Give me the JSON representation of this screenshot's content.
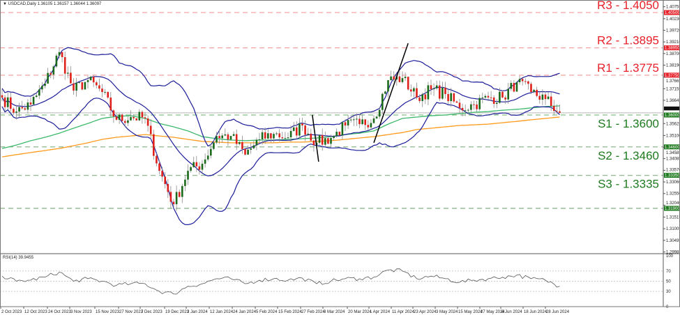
{
  "header": {
    "symbol_label": "USDCAD,Daily",
    "ohlc": "1.36105 1.36157 1.36044 1.36097"
  },
  "rsi_label": "RSI(14) 39.9455",
  "colors": {
    "resistance": "#e8202a",
    "support": "#1e7a1e",
    "bull": "#1b6a1b",
    "bear": "#e0201a",
    "bollinger": "#1c1c9a",
    "ma_green": "#3cb96b",
    "ma_orange": "#ff9a1a",
    "current_tag": "#111111"
  },
  "chart_data": {
    "type": "candlestick",
    "symbol": "USDCAD",
    "timeframe": "Daily",
    "ylim": [
      1.29985,
      1.40755
    ],
    "x_tick_labels": [
      "2 Oct 2023",
      "12 Oct 2023",
      "24 Oct 2023",
      "3 Nov 2023",
      "15 Nov 2023",
      "27 Nov 2023",
      "7 Dec 2023",
      "19 Dec 2023",
      "2 Jan 2024",
      "12 Jan 2024",
      "24 Jan 2024",
      "5 Feb 2024",
      "15 Feb 2024",
      "27 Feb 2024",
      "8 Mar 2024",
      "20 Mar 2024",
      "1 Apr 2024",
      "11 Apr 2024",
      "23 Apr 2024",
      "3 May 2024",
      "15 May 2024",
      "27 May 2024",
      "6 Jun 2024",
      "18 Jun 2024",
      "28 Jun 2024"
    ],
    "y_tick_labels": [
      "1.40755",
      "1.40230",
      "1.39720",
      "1.39210",
      "1.38700",
      "1.38190",
      "1.37665",
      "1.37155",
      "1.36645",
      "1.35625",
      "1.35100",
      "1.34585",
      "1.34085",
      "1.33570",
      "1.33060",
      "1.32550",
      "1.32040",
      "1.31515",
      "1.31005",
      "1.30495",
      "1.29985"
    ],
    "close_every_5_sessions": [
      1.3677,
      1.3615,
      1.3646,
      1.3738,
      1.3876,
      1.3707,
      1.3753,
      1.3701,
      1.3579,
      1.3591,
      1.3585,
      1.3355,
      1.3208,
      1.3355,
      1.3386,
      1.3508,
      1.3508,
      1.3426,
      1.3493,
      1.3517,
      1.3502,
      1.3554,
      1.3478,
      1.3499,
      1.3554,
      1.356,
      1.3585,
      1.3753,
      1.3762,
      1.3677,
      1.3713,
      1.3692,
      1.3631,
      1.3646,
      1.3677,
      1.3677,
      1.3744,
      1.3701,
      1.367,
      1.361
    ],
    "ma_green_every_5_sessions": [
      1.3453,
      1.3468,
      1.3487,
      1.3502,
      1.352,
      1.3542,
      1.3563,
      1.3585,
      1.3594,
      1.3597,
      1.3585,
      1.3563,
      1.3548,
      1.353,
      1.3505,
      1.3496,
      1.349,
      1.3487,
      1.349,
      1.349,
      1.3493,
      1.3496,
      1.3499,
      1.3505,
      1.3514,
      1.352,
      1.353,
      1.356,
      1.3585,
      1.3591,
      1.3597,
      1.36,
      1.3606,
      1.3612,
      1.3615,
      1.3621,
      1.3625,
      1.3631,
      1.3637,
      1.364
    ],
    "ma_orange_every_5_sessions": [
      1.3416,
      1.3426,
      1.3435,
      1.3444,
      1.3453,
      1.3465,
      1.3478,
      1.3493,
      1.3502,
      1.3508,
      1.3514,
      1.3508,
      1.3502,
      1.3493,
      1.3484,
      1.3481,
      1.3478,
      1.3478,
      1.3478,
      1.3478,
      1.3481,
      1.3481,
      1.3484,
      1.3487,
      1.3493,
      1.3499,
      1.3505,
      1.3514,
      1.3523,
      1.3536,
      1.3542,
      1.3548,
      1.3554,
      1.3557,
      1.356,
      1.3566,
      1.3572,
      1.3579,
      1.3585,
      1.3591
    ],
    "bollinger": {
      "period": 20,
      "deviations": 2
    },
    "levels": [
      {
        "label": "R3 - 1.4050",
        "price": 1.405,
        "tag": "1.40500",
        "kind": "resistance"
      },
      {
        "label": "R2 - 1.3895",
        "price": 1.3895,
        "tag": "1.38950",
        "kind": "resistance"
      },
      {
        "label": "R1 - 1.3775",
        "price": 1.3775,
        "tag": "1.37750",
        "kind": "resistance"
      },
      {
        "label": "S1 - 1.3600",
        "price": 1.36,
        "tag": "1.36000",
        "kind": "support"
      },
      {
        "label": "S2 - 1.3460",
        "price": 1.346,
        "tag": "1.34600",
        "kind": "support"
      },
      {
        "label": "S3 - 1.3335",
        "price": 1.3335,
        "tag": "1.33350",
        "kind": "support"
      },
      {
        "label": "",
        "price": 1.319,
        "tag": "1.31900",
        "kind": "support"
      }
    ],
    "current_price": 1.36097,
    "trendlines": [
      {
        "from": [
          130,
          1.3478
        ],
        "to": [
          142,
          1.3915
        ]
      },
      {
        "from": [
          108.5,
          1.36
        ],
        "to": [
          110.7,
          1.3395
        ]
      }
    ],
    "rsi": {
      "period": 14,
      "last": 39.9455,
      "levels": [
        70,
        50,
        30
      ],
      "y_tick_labels": [
        "100",
        "70",
        "50",
        "30",
        "0"
      ],
      "values_every_5_sessions": [
        60,
        50,
        52,
        58,
        68,
        50,
        55,
        50,
        42,
        45,
        45,
        30,
        25,
        40,
        45,
        55,
        55,
        45,
        52,
        55,
        52,
        56,
        45,
        50,
        55,
        55,
        58,
        72,
        70,
        55,
        60,
        55,
        48,
        52,
        55,
        58,
        62,
        55,
        52,
        40
      ]
    }
  }
}
